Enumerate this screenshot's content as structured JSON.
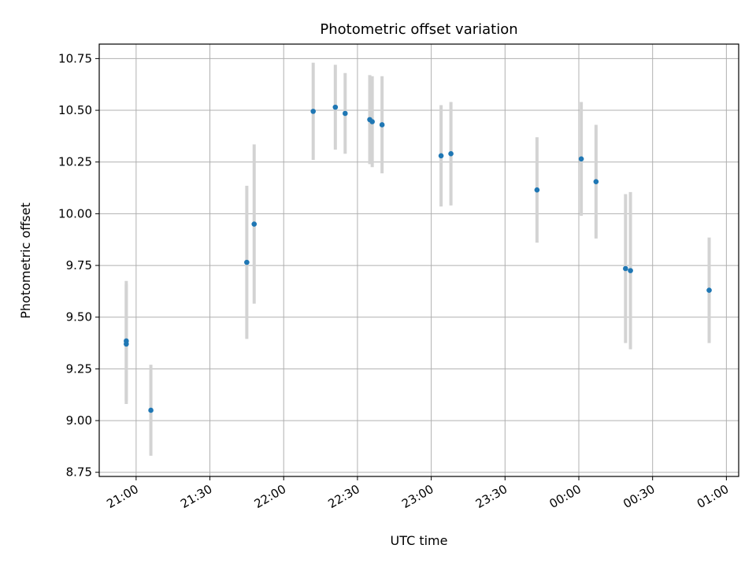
{
  "chart_data": {
    "type": "scatter",
    "title": "Photometric offset variation",
    "xlabel": "UTC time",
    "ylabel": "Photometric offset",
    "x_tick_labels": [
      "21:00",
      "21:30",
      "22:00",
      "22:30",
      "23:00",
      "23:30",
      "00:00",
      "00:30",
      "01:00"
    ],
    "y_ticks": [
      8.75,
      9.0,
      9.25,
      9.5,
      9.75,
      10.0,
      10.25,
      10.5,
      10.75
    ],
    "y_tick_labels": [
      "8.75",
      "9.00",
      "9.25",
      "9.50",
      "9.75",
      "10.00",
      "10.25",
      "10.50",
      "10.75"
    ],
    "x_range": [
      "20:45",
      "01:05"
    ],
    "ylim": [
      8.73,
      10.82
    ],
    "grid": true,
    "point_color": "#1f77b4",
    "errorbar_color": "#d3d3d3",
    "points": [
      {
        "x": "20:56",
        "y": 9.37,
        "err": 0.29
      },
      {
        "x": "20:56",
        "y": 9.385,
        "err": 0.29
      },
      {
        "x": "21:06",
        "y": 9.05,
        "err": 0.22
      },
      {
        "x": "21:45",
        "y": 9.765,
        "err": 0.37
      },
      {
        "x": "21:48",
        "y": 9.95,
        "err": 0.385
      },
      {
        "x": "22:12",
        "y": 10.495,
        "err": 0.235
      },
      {
        "x": "22:21",
        "y": 10.515,
        "err": 0.205
      },
      {
        "x": "22:25",
        "y": 10.485,
        "err": 0.195
      },
      {
        "x": "22:35",
        "y": 10.455,
        "err": 0.215
      },
      {
        "x": "22:36",
        "y": 10.445,
        "err": 0.22
      },
      {
        "x": "22:40",
        "y": 10.43,
        "err": 0.235
      },
      {
        "x": "23:04",
        "y": 10.28,
        "err": 0.245
      },
      {
        "x": "23:08",
        "y": 10.29,
        "err": 0.25
      },
      {
        "x": "23:43",
        "y": 10.115,
        "err": 0.255
      },
      {
        "x": "00:01",
        "y": 10.265,
        "err": 0.275
      },
      {
        "x": "00:07",
        "y": 10.155,
        "err": 0.275
      },
      {
        "x": "00:19",
        "y": 9.735,
        "err": 0.36
      },
      {
        "x": "00:21",
        "y": 9.725,
        "err": 0.38
      },
      {
        "x": "00:53",
        "y": 9.63,
        "err": 0.255
      }
    ]
  }
}
